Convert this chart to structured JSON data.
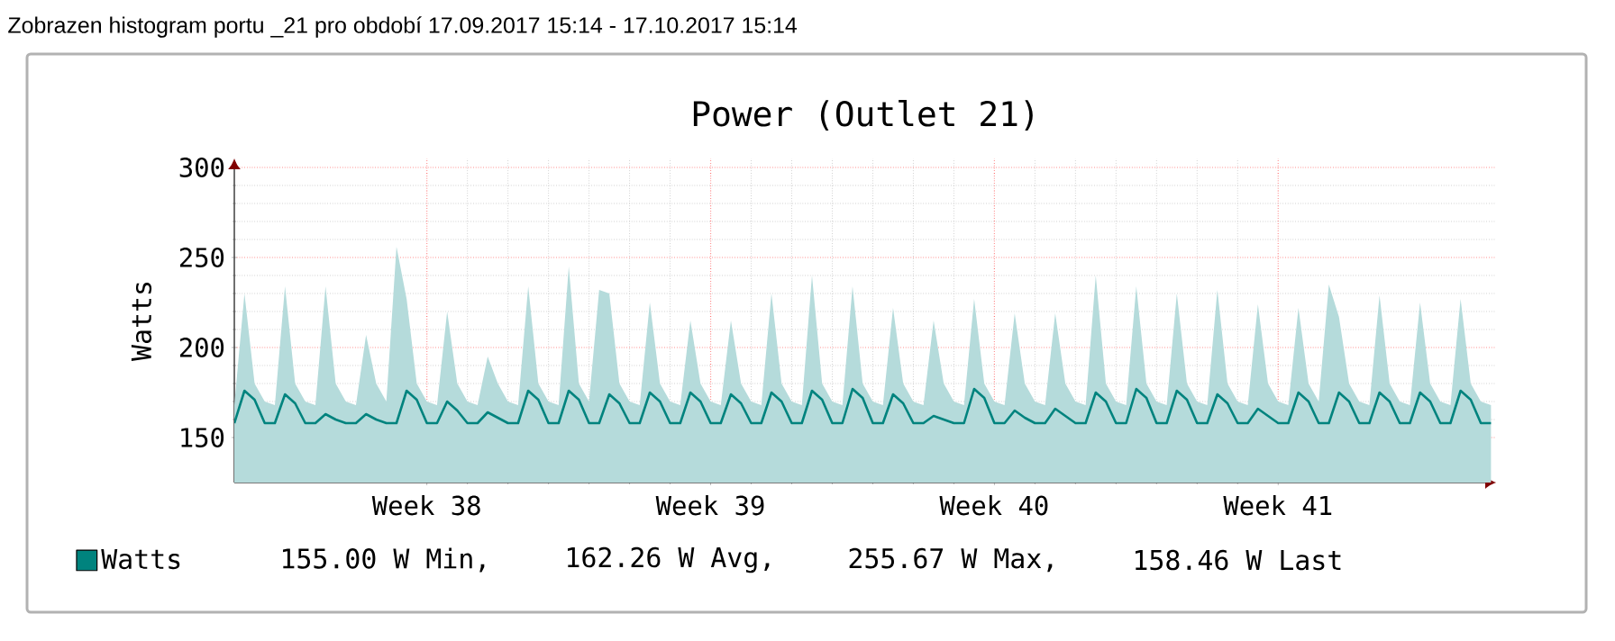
{
  "chart_data": {
    "type": "area",
    "title": "Power (Outlet 21)",
    "ylabel": "Watts",
    "annotations": [
      "Zobrazen histogram portu _21 pro období 17.09.2017 15:14 - 17.10.2017 15:14",
      "155.00 W Min,",
      "162.26 W Avg,",
      "255.67 W Max,",
      "158.46 W Last"
    ],
    "categories": [
      null,
      null,
      null,
      null,
      null,
      null,
      null,
      null,
      null,
      null,
      null,
      null,
      null,
      null,
      null,
      null,
      null,
      null,
      null,
      "Week 38",
      null,
      null,
      null,
      null,
      null,
      null,
      null,
      null,
      null,
      null,
      null,
      null,
      null,
      null,
      null,
      null,
      null,
      null,
      null,
      null,
      null,
      null,
      null,
      null,
      null,
      null,
      null,
      "Week 39",
      null,
      null,
      null,
      null,
      null,
      null,
      null,
      null,
      null,
      null,
      null,
      null,
      null,
      null,
      null,
      null,
      null,
      null,
      null,
      null,
      null,
      null,
      null,
      null,
      null,
      null,
      null,
      "Week 40",
      null,
      null,
      null,
      null,
      null,
      null,
      null,
      null,
      null,
      null,
      null,
      null,
      null,
      null,
      null,
      null,
      null,
      null,
      null,
      null,
      null,
      null,
      null,
      null,
      null,
      null,
      null,
      "Week 41",
      null,
      null,
      null,
      null,
      null,
      null,
      null,
      null,
      null,
      null,
      null,
      null,
      null,
      null,
      null,
      null,
      null,
      null,
      null,
      null,
      null
    ],
    "ylim": [
      125,
      305
    ],
    "yticks": [
      150,
      200,
      250,
      300
    ],
    "grid": true,
    "legend": "bottom",
    "series": [
      {
        "color": "#b5dbdb",
        "values": [
          168,
          230,
          180,
          170,
          168,
          234,
          180,
          170,
          168,
          234,
          180,
          170,
          168,
          207,
          180,
          170,
          256,
          227,
          180,
          170,
          168,
          220,
          180,
          170,
          168,
          195,
          180,
          170,
          168,
          234,
          180,
          170,
          168,
          245,
          180,
          170,
          232,
          230,
          180,
          170,
          168,
          225,
          180,
          170,
          168,
          215,
          180,
          170,
          168,
          215,
          180,
          170,
          168,
          230,
          180,
          170,
          168,
          240,
          180,
          170,
          168,
          234,
          180,
          170,
          168,
          222,
          180,
          170,
          168,
          215,
          180,
          170,
          168,
          227,
          180,
          170,
          168,
          219,
          180,
          170,
          168,
          219,
          180,
          170,
          168,
          240,
          180,
          170,
          168,
          234,
          180,
          170,
          168,
          230,
          180,
          170,
          168,
          232,
          180,
          170,
          168,
          224,
          180,
          170,
          168,
          222,
          180,
          170,
          235,
          217,
          180,
          170,
          168,
          229,
          180,
          170,
          168,
          225,
          180,
          170,
          168,
          227,
          180,
          170,
          168
        ]
      },
      {
        "type": "line",
        "name": "Watts",
        "color": "#00837e",
        "values": [
          158,
          176,
          171,
          158,
          158,
          174,
          169,
          158,
          158,
          163,
          160,
          158,
          158,
          163,
          160,
          158,
          158,
          176,
          171,
          158,
          158,
          170,
          165,
          158,
          158,
          164,
          161,
          158,
          158,
          176,
          171,
          158,
          158,
          176,
          171,
          158,
          158,
          174,
          169,
          158,
          158,
          175,
          170,
          158,
          158,
          175,
          170,
          158,
          158,
          174,
          169,
          158,
          158,
          175,
          170,
          158,
          158,
          176,
          171,
          158,
          158,
          177,
          172,
          158,
          158,
          174,
          169,
          158,
          158,
          162,
          160,
          158,
          158,
          177,
          172,
          158,
          158,
          165,
          161,
          158,
          158,
          166,
          162,
          158,
          158,
          175,
          170,
          158,
          158,
          177,
          172,
          158,
          158,
          176,
          171,
          158,
          158,
          174,
          169,
          158,
          158,
          166,
          162,
          158,
          158,
          175,
          170,
          158,
          158,
          175,
          170,
          158,
          158,
          175,
          170,
          158,
          158,
          175,
          170,
          158,
          158,
          176,
          171,
          158,
          158
        ]
      }
    ]
  }
}
